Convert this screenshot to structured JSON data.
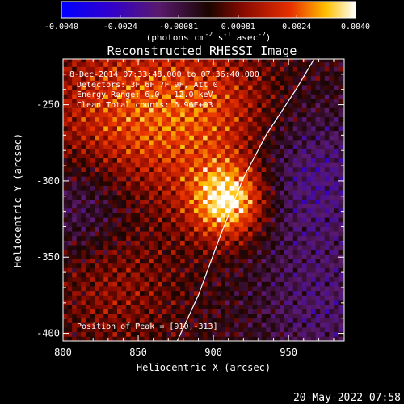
{
  "chart_data": {
    "type": "heatmap",
    "title": "Reconstructed RHESSI Image",
    "xlabel": "Heliocentric X (arcsec)",
    "ylabel": "Heliocentric Y (arcsec)",
    "xlim": [
      800,
      987
    ],
    "ylim": [
      -405,
      -220
    ],
    "xticks": [
      800,
      850,
      900,
      950
    ],
    "xtick_labels": [
      "800",
      "850",
      "900",
      "950"
    ],
    "yticks": [
      -250,
      -300,
      -350,
      -400
    ],
    "ytick_labels": [
      "-250",
      "-300",
      "-350",
      "-400"
    ],
    "colorbar": {
      "range": [
        -0.004,
        0.004
      ],
      "tick_values": [
        -0.004,
        -0.0024,
        -0.00081,
        0.00081,
        0.0024,
        0.004
      ],
      "tick_labels": [
        "-0.0040",
        "-0.0024",
        "-0.00081",
        "0.00081",
        "0.0024",
        "0.0040"
      ],
      "unit_label_text": "(photons cm",
      "unit_label_sup1": "-2",
      "unit_label_mid1": " s",
      "unit_label_sup2": "-1",
      "unit_label_mid2": " asec",
      "unit_label_sup3": "-2",
      "unit_label_end": ")"
    },
    "annotations": [
      "8-Dec-2014 07:33:48.000 to 07:36:40.000",
      "Detectors: 3F 6F 7F 9F, Att 0",
      "Energy Range: 6.0 - 12.0 keV",
      "Clean     Total counts: 6.96E+03"
    ],
    "peak_label": "Position of Peak = [910,-313]",
    "peak": {
      "x": 910,
      "y": -313,
      "value": 0.004
    },
    "limb_curve": {
      "x": [
        876,
        890,
        905,
        920,
        935,
        955,
        970,
        983
      ],
      "y": [
        -405,
        -375,
        -335,
        -298,
        -270,
        -240,
        -215,
        -198
      ]
    }
  },
  "footer": {
    "date": "20-May-2022 07:58"
  }
}
